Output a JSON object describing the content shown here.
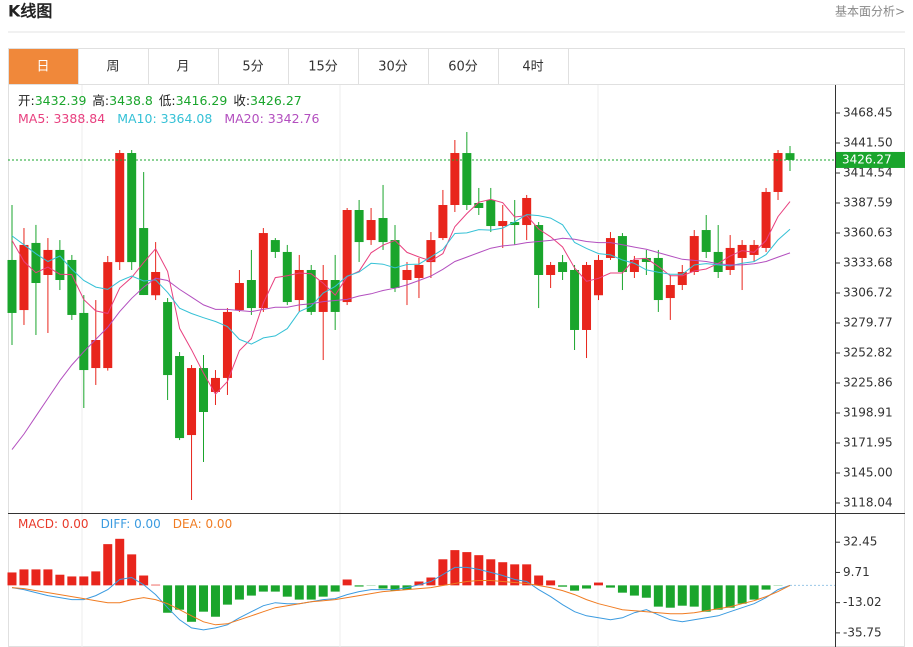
{
  "chart_data": {
    "type": "candlestick",
    "title": "K线图",
    "link": "基本面分析>",
    "tabs": [
      "日",
      "周",
      "月",
      "5分",
      "15分",
      "30分",
      "60分",
      "4时"
    ],
    "active_tab": 0,
    "ohlc_labels": [
      "开:",
      "高:",
      "低:",
      "收:"
    ],
    "separator": ": ",
    "up_color": "#e8251c",
    "down_color": "#1aa52c",
    "candles": {
      "open": [
        3336.4,
        3291.4,
        3351.7,
        3322.9,
        3345.4,
        3336.4,
        3288.8,
        3239.3,
        3239.3,
        3334.5,
        3432.5,
        3365.1,
        3304.7,
        3298.6,
        3250.1,
        3179.1,
        3239.3,
        3217.8,
        3230.4,
        3291.4,
        3318.4,
        3293.2,
        3354.3,
        3343.6,
        3300.4,
        3327.4,
        3289.7,
        3318.4,
        3298.6,
        3381.3,
        3354.3,
        3374.1,
        3354.3,
        3318.4,
        3320.2,
        3334.5,
        3356.1,
        3385.8,
        3432.5,
        3387.6,
        3390.3,
        3366.9,
        3370.5,
        3367.8,
        3367.8,
        3322.9,
        3334.5,
        3327.4,
        3273.5,
        3304.7,
        3338.2,
        3357.9,
        3325.6,
        3338.2,
        3338.2,
        3302.2,
        3313.9,
        3325.6,
        3363.3,
        3343.6,
        3327.4,
        3338.2,
        3340.9,
        3347.2,
        3397.5,
        3432.39
      ],
      "high": [
        3385.8,
        3365.1,
        3367.9,
        3356.1,
        3354.3,
        3340.9,
        3304.9,
        3300.4,
        3340.0,
        3435.2,
        3435.2,
        3415.4,
        3352.5,
        3302.2,
        3253.7,
        3242.0,
        3251.0,
        3237.5,
        3293.2,
        3327.4,
        3345.4,
        3365.1,
        3356.1,
        3349.9,
        3340.9,
        3331.9,
        3331.9,
        3340.9,
        3383.1,
        3390.3,
        3383.1,
        3403.8,
        3367.8,
        3334.6,
        3338.2,
        3361.5,
        3399.3,
        3444.2,
        3451.4,
        3401.1,
        3401.1,
        3385.8,
        3390.3,
        3394.8,
        3370.5,
        3334.6,
        3340.9,
        3331.9,
        3334.6,
        3340.9,
        3361.5,
        3360.6,
        3340.0,
        3345.4,
        3345.4,
        3322.9,
        3331.9,
        3363.3,
        3376.8,
        3367.8,
        3358.8,
        3354.3,
        3354.3,
        3401.1,
        3435.2,
        3438.8
      ],
      "low": [
        3260.0,
        3278.0,
        3269.0,
        3270.8,
        3309.4,
        3282.5,
        3203.4,
        3224.1,
        3237.0,
        3327.4,
        3327.4,
        3304.9,
        3300.4,
        3210.6,
        3174.6,
        3120.7,
        3154.9,
        3206.1,
        3215.1,
        3289.7,
        3287.0,
        3289.7,
        3338.2,
        3295.9,
        3289.7,
        3287.0,
        3246.5,
        3273.5,
        3295.9,
        3334.6,
        3349.9,
        3345.4,
        3307.6,
        3295.9,
        3302.2,
        3320.2,
        3354.3,
        3379.5,
        3381.3,
        3376.8,
        3361.5,
        3347.2,
        3349.9,
        3354.3,
        3293.2,
        3311.2,
        3318.4,
        3255.5,
        3248.3,
        3300.4,
        3336.4,
        3309.4,
        3320.2,
        3322.9,
        3289.7,
        3282.5,
        3309.4,
        3322.9,
        3338.2,
        3320.2,
        3322.9,
        3309.4,
        3334.6,
        3343.6,
        3390.3,
        3416.29
      ],
      "close": [
        3288.8,
        3349.9,
        3315.7,
        3345.4,
        3318.4,
        3287.0,
        3237.5,
        3264.5,
        3334.5,
        3432.5,
        3334.5,
        3304.9,
        3325.6,
        3233.0,
        3176.4,
        3239.3,
        3199.8,
        3230.4,
        3289.7,
        3315.7,
        3293.2,
        3360.6,
        3343.6,
        3298.6,
        3327.4,
        3289.7,
        3318.4,
        3289.7,
        3381.3,
        3352.5,
        3372.3,
        3352.5,
        3311.2,
        3327.4,
        3331.9,
        3354.3,
        3385.8,
        3432.5,
        3385.8,
        3383.1,
        3366.9,
        3371.4,
        3367.8,
        3392.1,
        3322.9,
        3331.9,
        3325.6,
        3273.5,
        3331.9,
        3336.4,
        3356.1,
        3325.6,
        3336.4,
        3334.6,
        3300.4,
        3313.9,
        3325.6,
        3357.9,
        3343.6,
        3325.6,
        3347.2,
        3349.9,
        3349.9,
        3397.5,
        3432.5,
        3426.27
      ]
    },
    "ma": [
      {
        "name": "MA5",
        "color": "#e8407f",
        "values": [
          3354,
          3335,
          3325,
          3330,
          3323.6,
          3323.3,
          3300.8,
          3290.6,
          3288.4,
          3311.2,
          3320.7,
          3334.2,
          3346.4,
          3326.1,
          3274.9,
          3255.8,
          3234.8,
          3215.8,
          3227.1,
          3255.0,
          3265.8,
          3297.9,
          3320.6,
          3322.3,
          3324.7,
          3324.0,
          3315.5,
          3304.8,
          3321.3,
          3326.3,
          3342.8,
          3349.7,
          3354.0,
          3343.2,
          3339.1,
          3335.5,
          3342.1,
          3366.4,
          3378.1,
          3388.3,
          3390.8,
          3387.9,
          3375.0,
          3376.3,
          3364.2,
          3357.2,
          3348.1,
          3329.2,
          3317.2,
          3319.9,
          3324.7,
          3324.7,
          3337.3,
          3337.8,
          3330.6,
          3322.2,
          3322.2,
          3326.5,
          3328.3,
          3333.3,
          3340.0,
          3344.8,
          3343.2,
          3354.0,
          3375.4,
          3388.84
        ]
      },
      {
        "name": "MA10",
        "color": "#35c1d6",
        "values": [
          3358,
          3350,
          3342,
          3335,
          3340,
          3328,
          3318,
          3312,
          3310,
          3317.4,
          3322.0,
          3317.5,
          3318.5,
          3307.3,
          3293.1,
          3288.3,
          3284.5,
          3281.1,
          3276.6,
          3265.0,
          3260.8,
          3266.4,
          3268.2,
          3274.7,
          3289.9,
          3294.9,
          3306.7,
          3312.7,
          3321.8,
          3325.5,
          3333.4,
          3332.6,
          3329.4,
          3332.3,
          3332.7,
          3339.2,
          3345.9,
          3360.2,
          3360.7,
          3363.7,
          3363.2,
          3365.0,
          3370.7,
          3377.2,
          3376.3,
          3374.0,
          3368.0,
          3352.1,
          3346.8,
          3342.1,
          3341.0,
          3336.4,
          3333.3,
          3327.5,
          3325.3,
          3323.5,
          3323.5,
          3331.9,
          3333.1,
          3332.0,
          3331.1,
          3333.5,
          3334.9,
          3341.2,
          3354.4,
          3364.08
        ]
      },
      {
        "name": "MA20",
        "color": "#b34fbf",
        "values": [
          3166,
          3180,
          3196,
          3212,
          3228,
          3242,
          3254,
          3265,
          3276,
          3290,
          3302,
          3312,
          3320,
          3318,
          3310,
          3303,
          3296,
          3292,
          3292,
          3291,
          3290,
          3292,
          3294,
          3294,
          3296,
          3297,
          3299,
          3300,
          3301,
          3304,
          3306,
          3309,
          3311,
          3314,
          3318,
          3322,
          3328,
          3335,
          3339,
          3343,
          3347,
          3349,
          3350,
          3352,
          3353,
          3354,
          3356,
          3355,
          3353,
          3352,
          3352,
          3350,
          3348,
          3346,
          3343,
          3340,
          3337,
          3336,
          3335,
          3333,
          3332,
          3332,
          3333,
          3335,
          3339,
          3342.76
        ]
      }
    ],
    "ylim": [
      3109.06,
      3493.61
    ],
    "yticks": [
      3468.45,
      {
        "value": 3441.5,
        "label": "3441.50"
      },
      3414.54,
      3387.59,
      3360.63,
      3333.68,
      3306.72,
      3279.77,
      3252.82,
      3225.86,
      3198.91,
      3171.95,
      {
        "value": 3145,
        "label": "3145.00"
      },
      3118.04
    ],
    "macd": {
      "ylim": [
        -46.36,
        53.66
      ],
      "yticks": [
        32.45,
        9.71,
        -13.02,
        -35.75
      ],
      "series": [
        {
          "name": "MACD",
          "color": "#e8392a",
          "legend_label": "0.00",
          "values": [
            9.7,
            12,
            12,
            12,
            8,
            6.7,
            6.7,
            10.5,
            31,
            35,
            23.3,
            7.4,
            0.5,
            -20.6,
            -18.3,
            -27.4,
            -19.8,
            -23.6,
            -14.5,
            -10.7,
            -7.7,
            -4.7,
            -4.7,
            -8.5,
            -10.7,
            -10.7,
            -8.5,
            -4.7,
            4.4,
            -0.9,
            -0.2,
            -2.4,
            -4,
            -3.2,
            2.9,
            5.9,
            19.6,
            26.5,
            25,
            22.7,
            19.6,
            17.4,
            15.8,
            15.8,
            7.4,
            3.7,
            -1,
            -4,
            -2.4,
            2.1,
            -1.7,
            -5.5,
            -7.7,
            -9.3,
            -16,
            -16.8,
            -15.3,
            -16,
            -19.8,
            -18.3,
            -16.8,
            -13.8,
            -10.7,
            -3.2,
            -0.2,
            0
          ]
        },
        {
          "name": "DIFF",
          "color": "#3b9be0",
          "legend_label": "0.00",
          "values": [
            -1.66,
            -3.17,
            -5.44,
            -7.72,
            -9.23,
            -10.75,
            -10.75,
            -7.72,
            -3.17,
            4.41,
            5.92,
            0.41,
            -6.96,
            -16.81,
            -25.9,
            -31.96,
            -33.47,
            -31.96,
            -29.69,
            -24.39,
            -19.84,
            -15.29,
            -13.02,
            -13.78,
            -13.78,
            -12.26,
            -10.75,
            -9.99,
            -6.96,
            -4.69,
            -3.17,
            -3.17,
            -3.17,
            -1.66,
            0.41,
            2.89,
            8.19,
            13.5,
            13.5,
            11.98,
            9.71,
            7.44,
            4.41,
            2.89,
            -3.17,
            -8.47,
            -14.54,
            -19.84,
            -22.87,
            -24.39,
            -25.9,
            -24.39,
            -20.6,
            -18.32,
            -22.11,
            -25.9,
            -27.42,
            -25.9,
            -24.39,
            -22.87,
            -19.84,
            -16.81,
            -13.78,
            -9.23,
            -3.17,
            0
          ]
        },
        {
          "name": "DEA",
          "color": "#f07c22",
          "legend_label": "0.00",
          "values": [
            -1.66,
            -2.41,
            -3.93,
            -5.44,
            -6.96,
            -8.47,
            -9.99,
            -11.51,
            -13.02,
            -13.02,
            -10.75,
            -9.23,
            -10.75,
            -13.78,
            -18.32,
            -22.87,
            -27.42,
            -29.69,
            -28.93,
            -25.9,
            -22.87,
            -19.84,
            -16.81,
            -15.29,
            -13.78,
            -12.26,
            -11.51,
            -10.75,
            -9.23,
            -7.72,
            -6.2,
            -4.69,
            -3.93,
            -3.17,
            -2.41,
            -1.66,
            -0.14,
            1.38,
            2.89,
            3.65,
            3.65,
            2.89,
            2.13,
            1.38,
            -0.14,
            -1.66,
            -3.93,
            -6.96,
            -10.75,
            -13.78,
            -16.05,
            -18.32,
            -19.08,
            -19.84,
            -20.6,
            -21.35,
            -21.35,
            -20.6,
            -19.08,
            -17.57,
            -16.05,
            -13.78,
            -11.51,
            -8.47,
            -4.69,
            0
          ]
        }
      ]
    }
  }
}
